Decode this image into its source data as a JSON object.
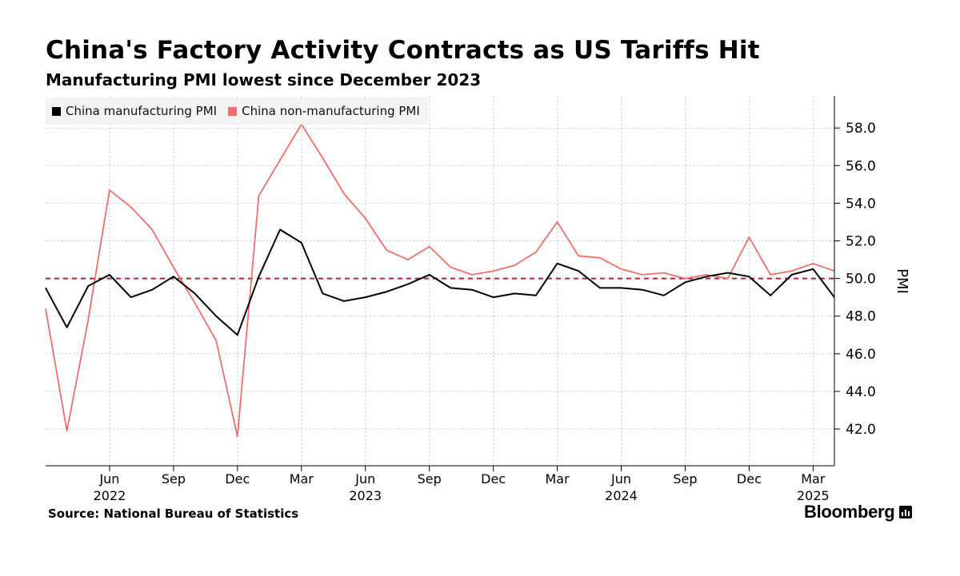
{
  "header": {
    "title": "China's Factory Activity Contracts as US Tariffs Hit",
    "subtitle": "Manufacturing PMI lowest since December 2023"
  },
  "footer": {
    "source": "Source: National Bureau of Statistics",
    "brand": "Bloomberg"
  },
  "colors": {
    "manufacturing": "#000000",
    "non_manufacturing": "#ee6f6a",
    "reference_line": "#b0243a",
    "grid": "#c8c8c8"
  },
  "chart_data": {
    "type": "line",
    "title": "China's Factory Activity Contracts as US Tariffs Hit",
    "subtitle": "Manufacturing PMI lowest since December 2023",
    "ylabel": "PMI",
    "xlabel": "",
    "ylim": [
      40.0,
      60.0
    ],
    "y_ticks": [
      "42.0",
      "44.0",
      "46.0",
      "48.0",
      "50.0",
      "52.0",
      "54.0",
      "56.0",
      "58.0"
    ],
    "reference_line": 50.0,
    "grid": true,
    "legend_position": "top-left",
    "x": [
      "2022-03",
      "2022-04",
      "2022-05",
      "2022-06",
      "2022-07",
      "2022-08",
      "2022-09",
      "2022-10",
      "2022-11",
      "2022-12",
      "2023-01",
      "2023-02",
      "2023-03",
      "2023-04",
      "2023-05",
      "2023-06",
      "2023-07",
      "2023-08",
      "2023-09",
      "2023-10",
      "2023-11",
      "2023-12",
      "2024-01",
      "2024-02",
      "2024-03",
      "2024-04",
      "2024-05",
      "2024-06",
      "2024-07",
      "2024-08",
      "2024-09",
      "2024-10",
      "2024-11",
      "2024-12",
      "2025-01",
      "2025-02",
      "2025-03",
      "2025-04"
    ],
    "x_tick_labels": [
      {
        "month": "2022-06",
        "label": "Jun"
      },
      {
        "month": "2022-09",
        "label": "Sep"
      },
      {
        "month": "2022-12",
        "label": "Dec"
      },
      {
        "month": "2023-03",
        "label": "Mar"
      },
      {
        "month": "2023-06",
        "label": "Jun"
      },
      {
        "month": "2023-09",
        "label": "Sep"
      },
      {
        "month": "2023-12",
        "label": "Dec"
      },
      {
        "month": "2024-03",
        "label": "Mar"
      },
      {
        "month": "2024-06",
        "label": "Jun"
      },
      {
        "month": "2024-09",
        "label": "Sep"
      },
      {
        "month": "2024-12",
        "label": "Dec"
      },
      {
        "month": "2025-03",
        "label": "Mar"
      }
    ],
    "year_labels": [
      {
        "month": "2022-06",
        "label": "2022"
      },
      {
        "month": "2023-06",
        "label": "2023"
      },
      {
        "month": "2024-06",
        "label": "2024"
      },
      {
        "month": "2025-03",
        "label": "2025"
      }
    ],
    "series": [
      {
        "name": "China manufacturing PMI",
        "values": [
          49.5,
          47.4,
          49.6,
          50.2,
          49.0,
          49.4,
          50.1,
          49.2,
          48.0,
          47.0,
          50.1,
          52.6,
          51.9,
          49.2,
          48.8,
          49.0,
          49.3,
          49.7,
          50.2,
          49.5,
          49.4,
          49.0,
          49.2,
          49.1,
          50.8,
          50.4,
          49.5,
          49.5,
          49.4,
          49.1,
          49.8,
          50.1,
          50.3,
          50.1,
          49.1,
          50.2,
          50.5,
          49.0
        ]
      },
      {
        "name": "China non-manufacturing PMI",
        "values": [
          48.4,
          41.9,
          47.8,
          54.7,
          53.8,
          52.6,
          50.6,
          48.7,
          46.7,
          41.6,
          54.4,
          56.3,
          58.2,
          56.4,
          54.5,
          53.2,
          51.5,
          51.0,
          51.7,
          50.6,
          50.2,
          50.4,
          50.7,
          51.4,
          53.0,
          51.2,
          51.1,
          50.5,
          50.2,
          50.3,
          50.0,
          50.2,
          50.0,
          52.2,
          50.2,
          50.4,
          50.8,
          50.4
        ]
      }
    ]
  }
}
